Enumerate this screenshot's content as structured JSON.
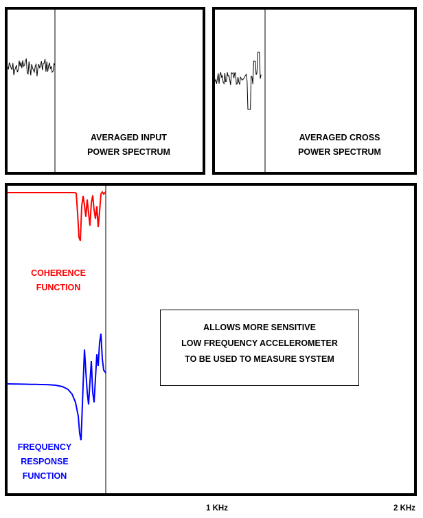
{
  "panels": {
    "input": {
      "label_line1": "AVERAGED INPUT",
      "label_line2": "POWER SPECTRUM"
    },
    "cross": {
      "label_line1": "AVERAGED CROSS",
      "label_line2": "POWER SPECTRUM"
    }
  },
  "main": {
    "coherence_label_line1": "COHERENCE",
    "coherence_label_line2": "FUNCTION",
    "frf_label_line1": "FREQUENCY",
    "frf_label_line2": "RESPONSE",
    "frf_label_line3": "FUNCTION",
    "note_line1": "ALLOWS MORE SENSITIVE",
    "note_line2": "LOW FREQUENCY ACCELEROMETER",
    "note_line3": "TO BE USED TO MEASURE SYSTEM"
  },
  "axis": {
    "tick1": "1 KHz",
    "tick2": "2 KHz"
  },
  "colors": {
    "coherence": "#ff0000",
    "frf": "#0000ff",
    "frame": "#000000"
  }
}
